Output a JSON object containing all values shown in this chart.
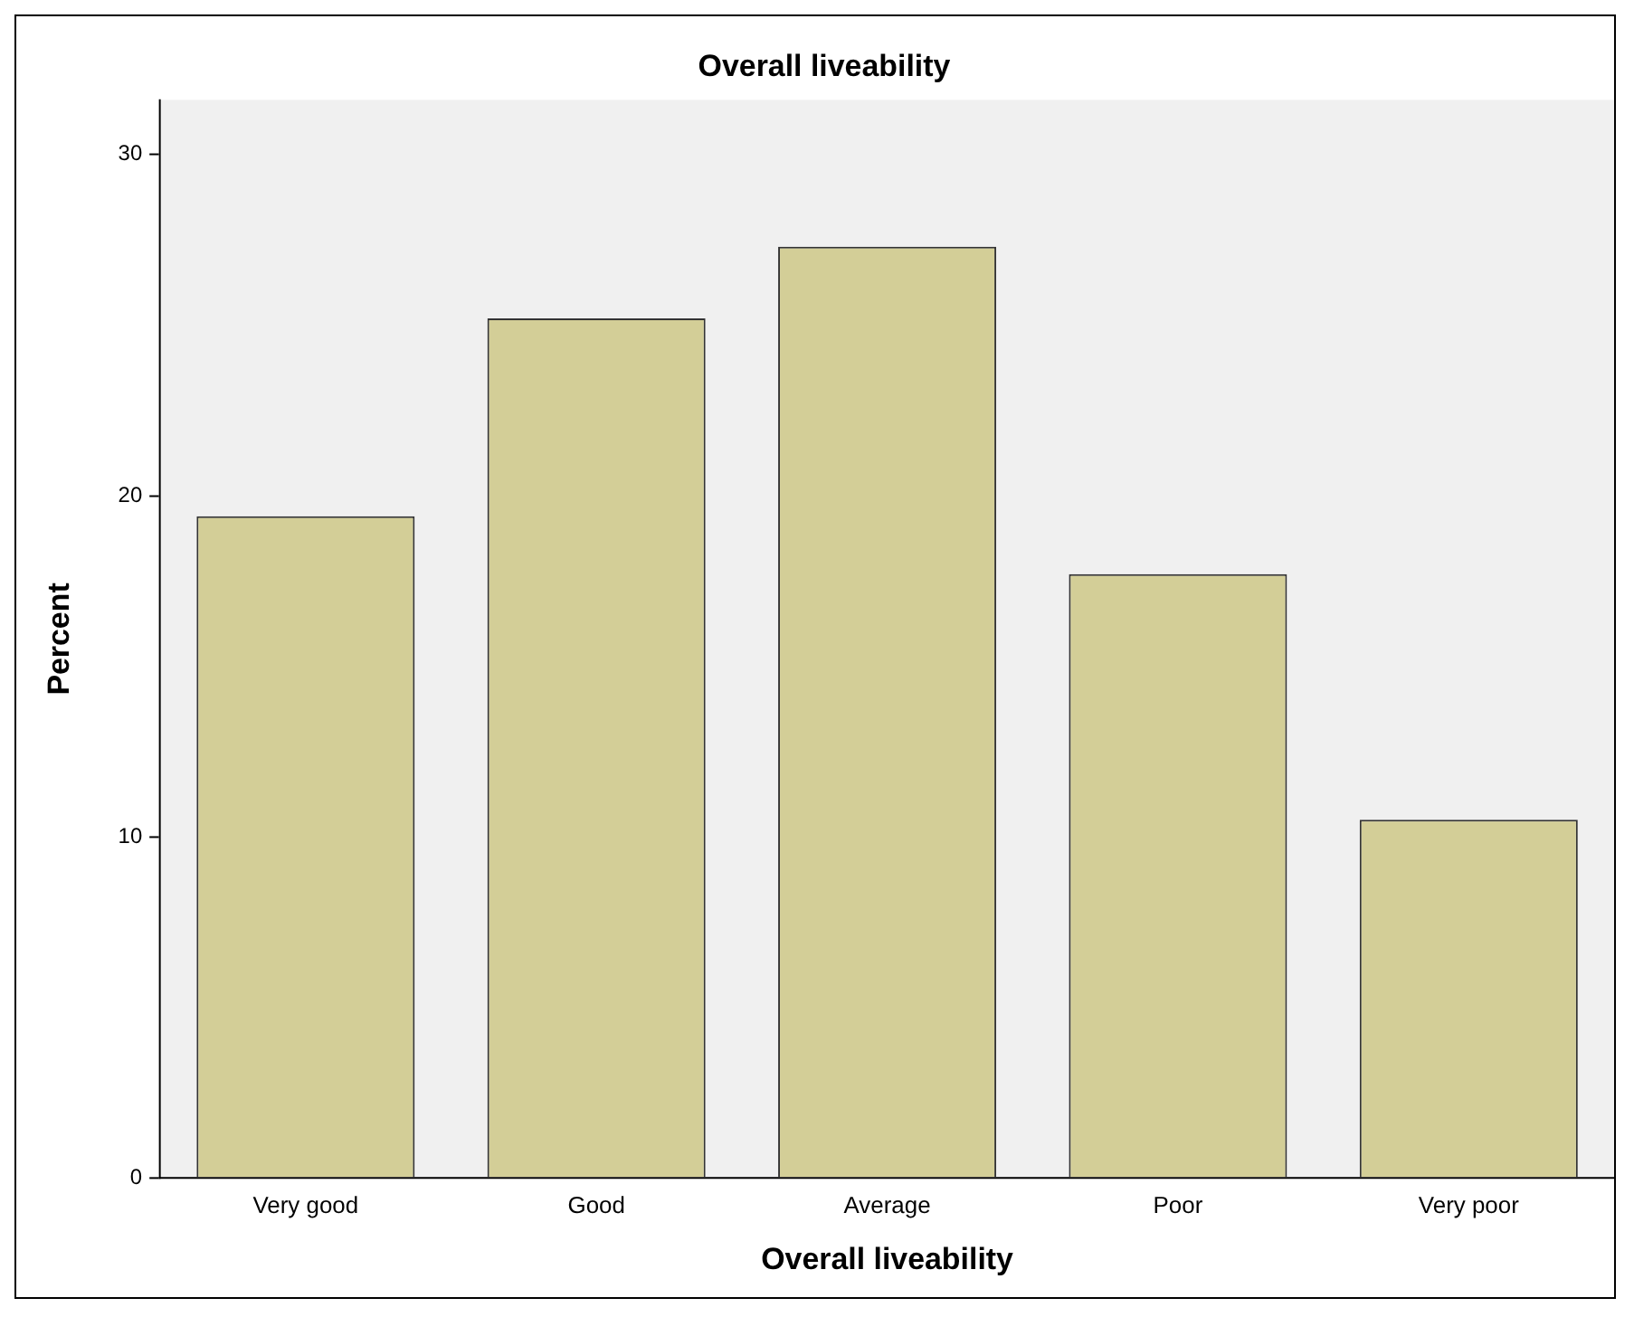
{
  "chart_data": {
    "type": "bar",
    "title": "Overall liveability",
    "xlabel": "Overall liveability",
    "ylabel": "Percent",
    "categories": [
      "Very good",
      "Good",
      "Average",
      "Poor",
      "Very poor"
    ],
    "values": [
      19.4,
      25.2,
      27.3,
      17.7,
      10.5
    ],
    "color": "#d3ce97",
    "ylim": [
      0,
      31.6
    ],
    "yticks": [
      0,
      10,
      20,
      30
    ],
    "grid": false,
    "legend": false
  }
}
